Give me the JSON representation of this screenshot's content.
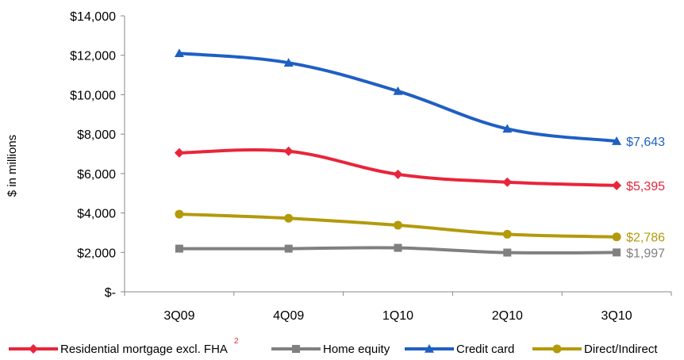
{
  "chart_data": {
    "type": "line",
    "categories": [
      "3Q09",
      "4Q09",
      "1Q10",
      "2Q10",
      "3Q10"
    ],
    "ylabel": "$ in millions",
    "ylim": [
      0,
      14000
    ],
    "y_ticks": [
      {
        "value": 0,
        "label": "$-"
      },
      {
        "value": 2000,
        "label": "$2,000"
      },
      {
        "value": 4000,
        "label": "$4,000"
      },
      {
        "value": 6000,
        "label": "$6,000"
      },
      {
        "value": 8000,
        "label": "$8,000"
      },
      {
        "value": 10000,
        "label": "$10,000"
      },
      {
        "value": 12000,
        "label": "$12,000"
      },
      {
        "value": 14000,
        "label": "$14,000"
      }
    ],
    "series": [
      {
        "name": "Residential mortgage excl. FHA",
        "legend_superscript": "2",
        "color": "#e8253a",
        "marker": "diamond",
        "values": [
          7050,
          7130,
          5960,
          5560,
          5395
        ],
        "end_label": "$5,395"
      },
      {
        "name": "Home equity",
        "color": "#808080",
        "marker": "square",
        "values": [
          2190,
          2190,
          2230,
          1990,
          1997
        ],
        "end_label": "$1,997"
      },
      {
        "name": "Credit card",
        "color": "#1f5fc4",
        "marker": "triangle",
        "values": [
          12100,
          11620,
          10180,
          8270,
          7643
        ],
        "end_label": "$7,643"
      },
      {
        "name": "Direct/Indirect",
        "color": "#b39a0b",
        "marker": "circle",
        "values": [
          3940,
          3730,
          3380,
          2920,
          2786
        ],
        "end_label": "$2,786"
      }
    ],
    "grid": false,
    "legend_position": "bottom"
  }
}
